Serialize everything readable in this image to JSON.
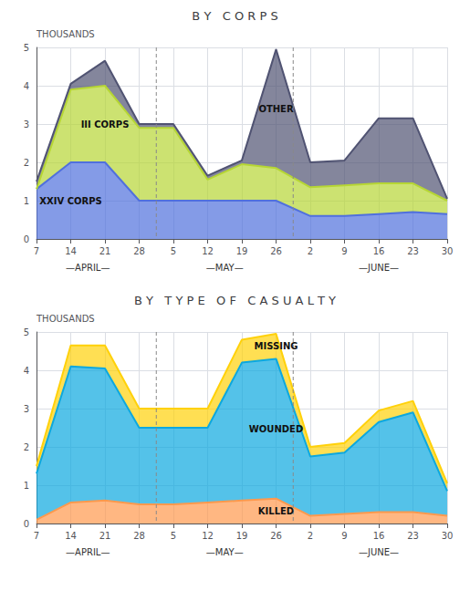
{
  "chart_data": [
    {
      "type": "area",
      "title": "B Y   C O R P S",
      "ylabel": "THOUSANDS",
      "categories": [
        "7",
        "14",
        "21",
        "28",
        "5",
        "12",
        "19",
        "26",
        "2",
        "9",
        "16",
        "23",
        "30"
      ],
      "x_groups": [
        {
          "label": "—APRIL—",
          "count": 4
        },
        {
          "label": "—MAY—",
          "count": 4
        },
        {
          "label": "—JUNE—",
          "count": 5
        }
      ],
      "ylim": [
        0,
        5
      ],
      "yticks": [
        0,
        1,
        2,
        3,
        4,
        5
      ],
      "grid": true,
      "stacked": true,
      "series": [
        {
          "name": "XXIV CORPS",
          "values": [
            1.3,
            2.0,
            2.0,
            1.0,
            1.0,
            1.0,
            1.0,
            1.0,
            0.6,
            0.6,
            0.65,
            0.7,
            0.65
          ]
        },
        {
          "name": "III CORPS",
          "values": [
            0,
            1.9,
            2.0,
            1.9,
            1.9,
            0.55,
            0.95,
            0.85,
            0.75,
            0.8,
            0.8,
            0.75,
            0.35
          ]
        },
        {
          "name": "OTHER",
          "values": [
            0.2,
            0.15,
            0.65,
            0.1,
            0.1,
            0.1,
            0.1,
            3.1,
            0.65,
            0.65,
            1.7,
            1.7,
            0.05
          ]
        }
      ]
    },
    {
      "type": "area",
      "title": "B Y   T Y P E   O F   C A S U A L T Y",
      "ylabel": "THOUSANDS",
      "categories": [
        "7",
        "14",
        "21",
        "28",
        "5",
        "12",
        "19",
        "26",
        "2",
        "9",
        "16",
        "23",
        "30"
      ],
      "x_groups": [
        {
          "label": "—APRIL—",
          "count": 4
        },
        {
          "label": "—MAY—",
          "count": 4
        },
        {
          "label": "—JUNE—",
          "count": 5
        }
      ],
      "ylim": [
        0,
        5
      ],
      "yticks": [
        0,
        1,
        2,
        3,
        4,
        5
      ],
      "grid": true,
      "stacked": true,
      "series": [
        {
          "name": "KILLED",
          "values": [
            0.1,
            0.55,
            0.6,
            0.5,
            0.5,
            0.55,
            0.6,
            0.65,
            0.2,
            0.25,
            0.3,
            0.3,
            0.2
          ]
        },
        {
          "name": "WOUNDED",
          "values": [
            1.2,
            3.55,
            3.45,
            2.0,
            2.0,
            1.95,
            3.6,
            3.65,
            1.55,
            1.6,
            2.35,
            2.6,
            0.65
          ]
        },
        {
          "name": "MISSING",
          "values": [
            0.2,
            0.55,
            0.6,
            0.5,
            0.5,
            0.5,
            0.6,
            0.65,
            0.25,
            0.25,
            0.3,
            0.3,
            0.2
          ]
        }
      ]
    }
  ]
}
